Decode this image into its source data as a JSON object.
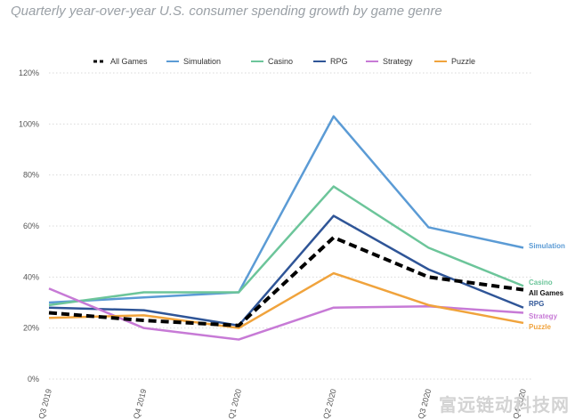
{
  "chart_data": {
    "type": "line",
    "title": "Quarterly year-over-year U.S. consumer spending growth by game genre",
    "categories": [
      "Q3 2019",
      "Q4 2019",
      "Q1 2020",
      "Q2 2020",
      "Q3 2020",
      "Q4 2020"
    ],
    "ylim": [
      0,
      120
    ],
    "yticks": [
      "0%",
      "20%",
      "40%",
      "60%",
      "80%",
      "100%",
      "120%"
    ],
    "ytick_values": [
      0,
      20,
      40,
      60,
      80,
      100,
      120
    ],
    "grid": true,
    "legend_position": "top",
    "series": [
      {
        "name": "All Games",
        "end_label": "All Games",
        "color": "#000000",
        "dashed": true,
        "values": [
          26,
          23,
          21,
          55.5,
          40,
          35
        ]
      },
      {
        "name": "Simulation",
        "end_label": "Simulation",
        "color": "#5b9bd5",
        "dashed": false,
        "values": [
          30,
          32,
          34,
          103,
          59.5,
          51.5
        ]
      },
      {
        "name": "Casino",
        "end_label": "Casino",
        "color": "#6cc59a",
        "dashed": false,
        "values": [
          29,
          34,
          34,
          75.5,
          51.5,
          36.5
        ]
      },
      {
        "name": "RPG",
        "end_label": "RPG",
        "color": "#2f5597",
        "dashed": false,
        "values": [
          28,
          27,
          21,
          64,
          43,
          28
        ]
      },
      {
        "name": "Strategy",
        "end_label": "Strategy",
        "color": "#c77ad6",
        "dashed": false,
        "values": [
          35.5,
          20,
          15.5,
          28,
          28.5,
          26
        ]
      },
      {
        "name": "Puzzle",
        "end_label": "Puzzle",
        "color": "#f0a33c",
        "dashed": false,
        "values": [
          24,
          25,
          20,
          41.5,
          29,
          22
        ]
      }
    ]
  },
  "watermark": "富远链动科技网"
}
